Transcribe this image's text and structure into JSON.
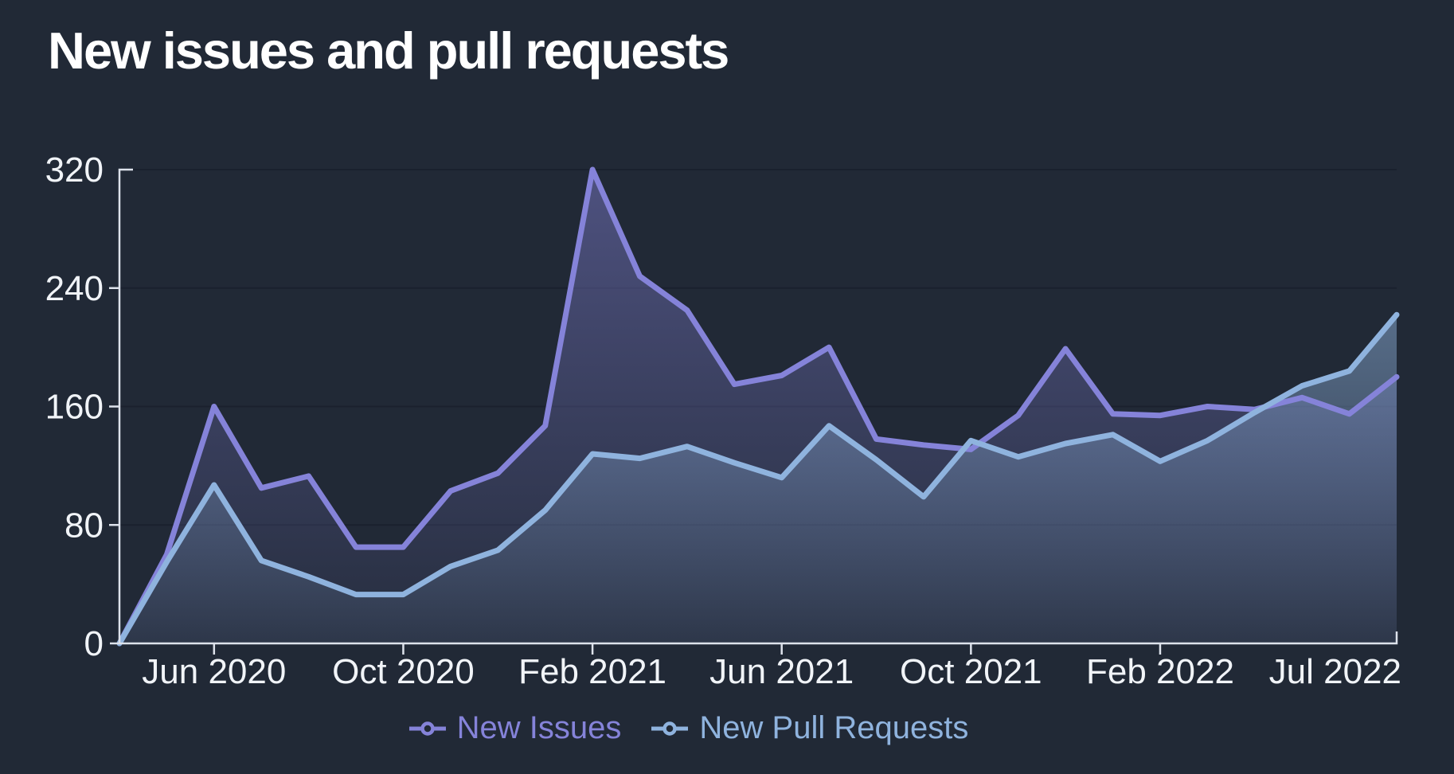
{
  "title": "New issues and pull requests",
  "colors": {
    "background": "#212936",
    "axis": "#dde2eb",
    "gridline": "#1a212e",
    "tick_text": "#f1f4f8",
    "issues_accent": "#8583d9",
    "pull_requests_accent": "#8fb3de"
  },
  "legend": {
    "items": [
      {
        "label": "New Issues",
        "color": "#8583d9"
      },
      {
        "label": "New Pull Requests",
        "color": "#8fb3de"
      }
    ]
  },
  "chart_data": {
    "type": "area",
    "title": "New issues and pull requests",
    "xlabel": "",
    "ylabel": "",
    "grid": true,
    "legend_position": "bottom",
    "ylim": [
      0,
      320
    ],
    "y_ticks": [
      0,
      80,
      160,
      240,
      320
    ],
    "x": [
      "Apr 2020",
      "May 2020",
      "Jun 2020",
      "Jul 2020",
      "Aug 2020",
      "Sep 2020",
      "Oct 2020",
      "Nov 2020",
      "Dec 2020",
      "Jan 2021",
      "Feb 2021",
      "Mar 2021",
      "Apr 2021",
      "May 2021",
      "Jun 2021",
      "Jul 2021",
      "Aug 2021",
      "Sep 2021",
      "Oct 2021",
      "Nov 2021",
      "Dec 2021",
      "Jan 2022",
      "Feb 2022",
      "Mar 2022",
      "Apr 2022",
      "May 2022",
      "Jun 2022",
      "Jul 2022"
    ],
    "x_ticks": [
      {
        "label": "Jun 2020",
        "index": 2
      },
      {
        "label": "Oct 2020",
        "index": 6
      },
      {
        "label": "Feb 2021",
        "index": 10
      },
      {
        "label": "Jun 2021",
        "index": 14
      },
      {
        "label": "Oct 2021",
        "index": 18
      },
      {
        "label": "Feb 2022",
        "index": 22
      },
      {
        "label": "Jul 2022",
        "index": 27
      }
    ],
    "series": [
      {
        "name": "New Issues",
        "color": "#8583d9",
        "values": [
          0,
          60,
          160,
          105,
          113,
          65,
          65,
          103,
          115,
          147,
          320,
          248,
          225,
          175,
          181,
          200,
          138,
          134,
          131,
          154,
          199,
          155,
          154,
          160,
          158,
          166,
          155,
          180
        ]
      },
      {
        "name": "New Pull Requests",
        "color": "#8fb3de",
        "values": [
          0,
          55,
          107,
          56,
          45,
          33,
          33,
          52,
          63,
          90,
          128,
          125,
          133,
          122,
          112,
          147,
          124,
          99,
          137,
          126,
          135,
          141,
          123,
          137,
          156,
          174,
          184,
          222
        ]
      }
    ]
  }
}
